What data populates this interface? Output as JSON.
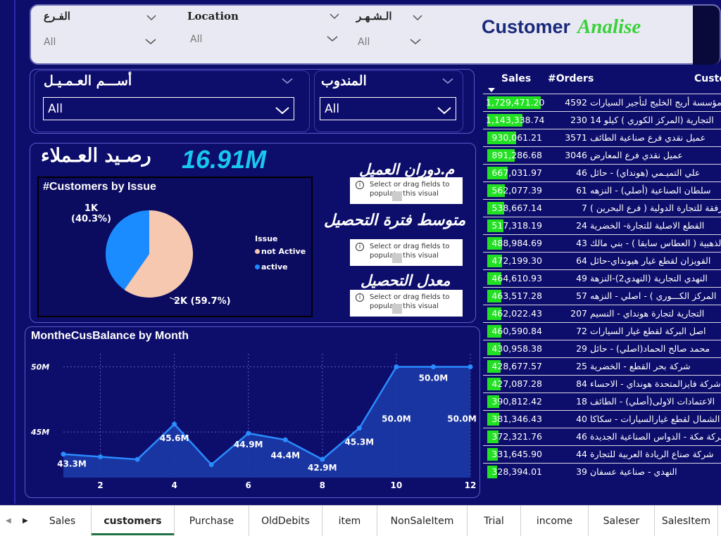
{
  "filters": {
    "branch": {
      "label": "الفـرع",
      "value": "All"
    },
    "location": {
      "label": "Location",
      "value": "All"
    },
    "month": {
      "label": "الـشـهـر",
      "value": "All"
    }
  },
  "brand": {
    "word1": "Customer",
    "word2": "Analise"
  },
  "slicers": {
    "customer_name": {
      "label": "أســـم العـمـيـل",
      "value": "All"
    },
    "rep": {
      "label": "المندوب",
      "value": "All"
    }
  },
  "kpi": {
    "title": "رصـيد العـملاء",
    "value": "16.91M",
    "turnover_label": "م.دوران العميل",
    "avg_collection_label": "متوسط فترة التحصيل",
    "collection_rate_label": "معدل التحصيل",
    "placeholder_text": "Select or drag fields to populate this visual"
  },
  "pie": {
    "title": "#Customers by Issue",
    "legend_title": "Issue",
    "legend": [
      {
        "name": "not Active",
        "color": "#f6c8b0"
      },
      {
        "name": "active",
        "color": "#1a8cff"
      }
    ],
    "label_active_value": "1K",
    "label_active_pct": "(40.3%)",
    "label_notactive": "2K (59.7%)"
  },
  "chart_data": {
    "type": "area",
    "title": "MontheCusBalance by Month",
    "x": [
      1,
      2,
      3,
      4,
      5,
      6,
      7,
      8,
      9,
      10,
      11,
      12
    ],
    "series": [
      {
        "values": [
          43.3,
          43.1,
          42.9,
          45.6,
          42.5,
          44.9,
          44.4,
          42.9,
          45.3,
          50.0,
          50.0,
          50.0
        ]
      }
    ],
    "xticks": [
      2,
      4,
      6,
      8,
      10,
      12
    ],
    "yticks": [
      "45M",
      "50M"
    ],
    "data_labels": [
      {
        "x": 1,
        "text": "43.3M"
      },
      {
        "x": 4,
        "text": "45.6M"
      },
      {
        "x": 6,
        "text": "44.9M"
      },
      {
        "x": 7,
        "text": "44.4M"
      },
      {
        "x": 8,
        "text": "42.9M"
      },
      {
        "x": 9,
        "text": "45.3M"
      },
      {
        "x": 10,
        "text": "50.0M"
      },
      {
        "x": 11,
        "text": "50.0M"
      },
      {
        "x": 12,
        "text": "50.0M"
      }
    ],
    "ylim": [
      41.5,
      51
    ],
    "grid": true
  },
  "table": {
    "headers": {
      "sales": "Sales",
      "orders": "#Orders",
      "customer": "Custo"
    },
    "max_sales": 1729471.2,
    "rows": [
      {
        "sales": "1,729,471.20",
        "raw": 1729471.2,
        "orders": "4592",
        "customer": "مؤسسة أريج الخليج لتأجير السيارات"
      },
      {
        "sales": "1,143,338.74",
        "raw": 1143338.74,
        "orders": "230",
        "customer": "التجارية (المركز الكوري ) كيلو 14"
      },
      {
        "sales": "930,061.21",
        "raw": 930061.21,
        "orders": "3571",
        "customer": "عميل نقدي فرع صناعية الطائف"
      },
      {
        "sales": "891,286.68",
        "raw": 891286.68,
        "orders": "3046",
        "customer": "عميل نقدي فرع المعارض"
      },
      {
        "sales": "667,031.97",
        "raw": 667031.97,
        "orders": "46",
        "customer": "علي التميـمي (هونداي) - حائل"
      },
      {
        "sales": "562,077.39",
        "raw": 562077.39,
        "orders": "61",
        "customer": "سلطان الصناعية (أصلي) - النزهه"
      },
      {
        "sales": "538,667.14",
        "raw": 538667.14,
        "orders": "7",
        "customer": "رفقة للتجارة الدولية ( فرع البحرين )"
      },
      {
        "sales": "517,318.19",
        "raw": 517318.19,
        "orders": "24",
        "customer": "القطع الاصلية للتجارة- الخضرية"
      },
      {
        "sales": "488,984.69",
        "raw": 488984.69,
        "orders": "43",
        "customer": "الذهبية ( العطاس سابقا ) - بني مالك"
      },
      {
        "sales": "472,199.30",
        "raw": 472199.3,
        "orders": "64",
        "customer": "القويزان لقطع غيار هيونداي-حائل"
      },
      {
        "sales": "464,610.93",
        "raw": 464610.93,
        "orders": "49",
        "customer": "النهدي التجارية (النهدي2)-النزهة"
      },
      {
        "sales": "463,517.28",
        "raw": 463517.28,
        "orders": "57",
        "customer": "المركز الكـــوري ) - اصلي - النزهه"
      },
      {
        "sales": "462,022.43",
        "raw": 462022.43,
        "orders": "207",
        "customer": "التجارية لتجارة هونداي - النسيم"
      },
      {
        "sales": "460,590.84",
        "raw": 460590.84,
        "orders": "72",
        "customer": "اصل البركة لقطع غيار السيارات"
      },
      {
        "sales": "430,958.38",
        "raw": 430958.38,
        "orders": "29",
        "customer": "محمد صالح الحماد(اصلي) - حائل"
      },
      {
        "sales": "428,677.57",
        "raw": 428677.57,
        "orders": "25",
        "customer": "شركة بحر القطع - الخضرية"
      },
      {
        "sales": "427,087.28",
        "raw": 427087.28,
        "orders": "84",
        "customer": "شركة فايزالمتحدة هونداي - الاحساء"
      },
      {
        "sales": "390,812.42",
        "raw": 390812.42,
        "orders": "18",
        "customer": "الاعتمادات الاولى(أصلي) - الطائف"
      },
      {
        "sales": "381,346.43",
        "raw": 381346.43,
        "orders": "40",
        "customer": "الشمال لقطع غيارالسيارات - سكاكا"
      },
      {
        "sales": "372,321.76",
        "raw": 372321.76,
        "orders": "46",
        "customer": "شركة مكة - الدواس الصناعية الجديدة"
      },
      {
        "sales": "331,645.90",
        "raw": 331645.9,
        "orders": "44",
        "customer": "شركة صناع الريادة العربية للتجارة"
      },
      {
        "sales": "328,394.01",
        "raw": 328394.01,
        "orders": "39",
        "customer": "النهدي - صناعية عسفان"
      }
    ]
  },
  "tabs": [
    {
      "label": "Sales"
    },
    {
      "label": "customers",
      "active": true
    },
    {
      "label": "Purchase"
    },
    {
      "label": "OldDebits"
    },
    {
      "label": "item"
    },
    {
      "label": "NonSaleItem"
    },
    {
      "label": "Trial"
    },
    {
      "label": "income"
    },
    {
      "label": "Saleser"
    },
    {
      "label": "SalesItem"
    }
  ]
}
